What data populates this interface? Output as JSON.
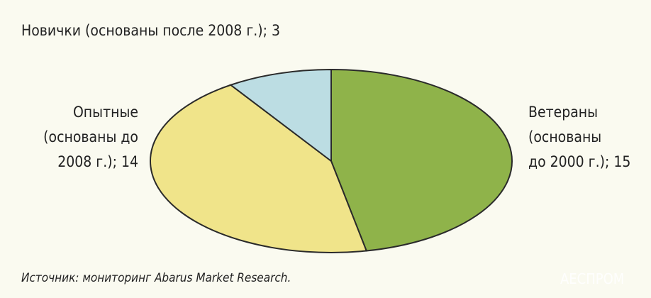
{
  "chart_data": {
    "type": "pie",
    "categories": [
      "Ветераны\n(основаны\nдо 2000 г.); 15",
      "Опытные\n(основаны до\n2008 г.); 14",
      "Новички (основаны после 2008 г.); 3"
    ],
    "values": [
      15,
      14,
      3
    ],
    "colors": [
      "#8fb34a",
      "#f0e48a",
      "#bcdde3"
    ],
    "source": "Источник: мониторинг Abarus Market Research.",
    "watermark": "АЕСПРОМ"
  }
}
